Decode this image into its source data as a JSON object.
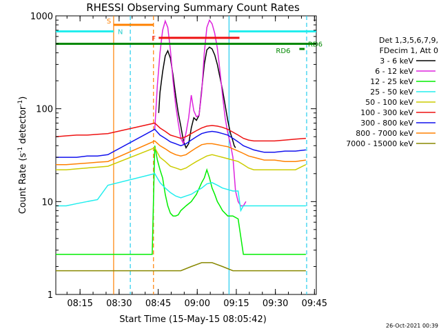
{
  "chart_data": {
    "type": "line",
    "title": "RHESSI Observing Summary Count Rates",
    "xlabel": "Start Time (15-May-15 08:05:42)",
    "ylabel_main": "Count Rate (s",
    "ylabel_sup1": "-1",
    "ylabel_mid": " detector",
    "ylabel_sup2": "-1",
    "ylabel_end": ")",
    "y_scale": "log",
    "ylim": [
      1,
      1000
    ],
    "xlim": [
      "08:05:42",
      "09:45:42"
    ],
    "x_ticks": [
      "08:15",
      "08:30",
      "08:45",
      "09:00",
      "09:15",
      "09:30",
      "09:45"
    ],
    "y_ticks": [
      "1",
      "10",
      "100",
      "1000"
    ],
    "grid": false,
    "legend_placement": "right",
    "legend_header": [
      "Det 1,3,5,6,7,9,",
      "FDecim 1, Att 0"
    ],
    "timestamp": "26-Oct-2021 00:39",
    "x_domain_min": [
      0,
      100
    ],
    "flag_labels": {
      "S": "S",
      "N": "N",
      "F": "F",
      "RD6": "RD6",
      "RD6_b": "RD6"
    },
    "vlines": [
      {
        "t": 22.2,
        "color": "#ff8000",
        "style": "solid"
      },
      {
        "t": 28.6,
        "color": "#22ccee",
        "style": "dashed"
      },
      {
        "t": 37.5,
        "color": "#ff8000",
        "style": "dashed"
      },
      {
        "t": 66.5,
        "color": "#22ccee",
        "style": "solid"
      },
      {
        "t": 96.3,
        "color": "#22ccee",
        "style": "dashed"
      }
    ],
    "flags": [
      {
        "name": "S",
        "t0": 22.2,
        "t1": 37.5,
        "y": 800,
        "color": "#ff8000"
      },
      {
        "name": "N",
        "t0": 0,
        "t1": 22.2,
        "y": 680,
        "color": "#22eeee"
      },
      {
        "name": "N2",
        "t0": 66.5,
        "t1": 100,
        "y": 680,
        "color": "#22eeee"
      },
      {
        "name": "F",
        "t0": 39.5,
        "t1": 70.5,
        "y": 580,
        "color": "#ee1111"
      },
      {
        "name": "RD6",
        "t0": 0,
        "t1": 100,
        "y": 500,
        "color": "#008800"
      },
      {
        "name": "RD6_b",
        "t0": 93.5,
        "t1": 95.5,
        "y": 440,
        "color": "#008800"
      }
    ],
    "series": [
      {
        "name": "3 - 6 keV",
        "color": "#000000",
        "x": [
          39.5,
          40,
          41,
          42,
          43,
          44,
          45,
          46,
          47,
          48,
          49,
          50,
          51,
          52,
          53,
          54,
          55,
          56,
          57,
          58,
          59,
          60,
          61,
          62,
          63,
          64,
          65,
          66,
          67,
          68,
          68.5,
          69
        ],
        "values": [
          90,
          150,
          250,
          370,
          420,
          350,
          230,
          140,
          90,
          65,
          45,
          38,
          42,
          62,
          80,
          75,
          85,
          160,
          300,
          430,
          460,
          440,
          380,
          300,
          220,
          160,
          110,
          75,
          55,
          45,
          40,
          38
        ]
      },
      {
        "name": "6 - 12 keV",
        "color": "#dd22dd",
        "x": [
          38,
          39,
          40,
          41,
          42,
          43,
          44,
          45,
          46,
          47,
          48,
          49,
          50,
          51,
          52,
          53,
          54,
          55,
          56,
          57,
          58,
          59,
          60,
          61,
          62,
          63,
          64,
          65,
          66,
          67,
          68,
          69,
          70,
          71,
          72,
          73
        ],
        "values": [
          60,
          180,
          400,
          700,
          880,
          750,
          430,
          200,
          110,
          70,
          48,
          42,
          55,
          80,
          140,
          95,
          82,
          85,
          150,
          400,
          750,
          900,
          820,
          650,
          450,
          260,
          140,
          80,
          55,
          42,
          30,
          13,
          10,
          9,
          9,
          10
        ]
      },
      {
        "name": "12 - 25 keV",
        "color": "#00ee00",
        "x": [
          0,
          5,
          10,
          15,
          20,
          22,
          26,
          30,
          34,
          37,
          38,
          39,
          40,
          41,
          42,
          43,
          44,
          45,
          46,
          47,
          48,
          50,
          52,
          54,
          56,
          57,
          58,
          59,
          60,
          61,
          62,
          63,
          64,
          66,
          68,
          70,
          72,
          74,
          76,
          78,
          80,
          84,
          88,
          92,
          96
        ],
        "values": [
          2.7,
          2.7,
          2.7,
          2.7,
          2.7,
          2.7,
          2.7,
          2.7,
          2.7,
          2.7,
          40,
          28,
          22,
          18,
          12,
          9,
          7.5,
          7,
          7,
          7.2,
          8,
          9,
          10,
          12,
          16,
          18,
          22,
          18,
          14,
          12,
          10,
          9,
          8,
          7,
          7,
          6.5,
          2.7,
          2.7,
          2.7,
          2.7,
          2.7,
          2.7,
          2.7,
          2.7,
          2.7
        ]
      },
      {
        "name": "25 - 50 keV",
        "color": "#22eeee",
        "x": [
          0,
          4,
          8,
          12,
          16,
          20,
          38,
          40,
          42,
          44,
          46,
          48,
          50,
          52,
          54,
          56,
          58,
          60,
          62,
          64,
          66,
          68,
          70,
          71,
          72,
          74,
          76,
          78,
          80,
          84,
          88,
          92,
          96
        ],
        "values": [
          9,
          9,
          9.5,
          10,
          10.5,
          15,
          20,
          16,
          14,
          12.5,
          11.5,
          11,
          11.5,
          12,
          13,
          14,
          15.5,
          16,
          15,
          14,
          13.5,
          13,
          13,
          8,
          9,
          9,
          9,
          9,
          9,
          9,
          9,
          9,
          9
        ]
      },
      {
        "name": "50 - 100 keV",
        "color": "#cccc00",
        "x": [
          0,
          4,
          8,
          12,
          16,
          20,
          38,
          40,
          42,
          44,
          46,
          48,
          50,
          52,
          54,
          56,
          58,
          60,
          62,
          64,
          66,
          68,
          70,
          72,
          74,
          76,
          78,
          80,
          84,
          88,
          92,
          96
        ],
        "values": [
          22,
          22,
          22.5,
          23,
          23.5,
          24,
          38,
          30,
          27,
          24,
          23,
          22,
          23,
          25,
          27,
          29,
          31,
          32,
          31,
          30,
          29,
          28,
          27,
          25,
          23,
          22,
          22,
          22,
          22,
          22,
          22,
          25
        ]
      },
      {
        "name": "100 - 300 keV",
        "color": "#ee1111",
        "x": [
          0,
          4,
          8,
          12,
          16,
          20,
          38,
          40,
          42,
          44,
          46,
          48,
          50,
          52,
          54,
          56,
          58,
          60,
          62,
          64,
          66,
          68,
          70,
          72,
          74,
          76,
          78,
          80,
          84,
          88,
          92,
          96
        ],
        "values": [
          50,
          51,
          52,
          52,
          53,
          54,
          70,
          62,
          57,
          52,
          50,
          48,
          50,
          54,
          58,
          62,
          65,
          66,
          65,
          63,
          60,
          56,
          52,
          48,
          46,
          45,
          45,
          45,
          45,
          46,
          47,
          48
        ]
      },
      {
        "name": "300 - 800 keV",
        "color": "#1111ee",
        "x": [
          0,
          4,
          8,
          12,
          16,
          20,
          38,
          40,
          42,
          44,
          46,
          48,
          50,
          52,
          54,
          56,
          58,
          60,
          62,
          64,
          66,
          68,
          70,
          72,
          74,
          76,
          78,
          80,
          84,
          88,
          92,
          96
        ],
        "values": [
          30,
          30,
          30,
          31,
          31,
          32,
          60,
          52,
          48,
          44,
          42,
          40,
          42,
          46,
          50,
          54,
          56,
          57,
          56,
          54,
          52,
          48,
          44,
          40,
          38,
          36,
          35,
          34,
          34,
          35,
          35,
          36
        ]
      },
      {
        "name": "800 - 7000 keV",
        "color": "#ff8000",
        "x": [
          0,
          4,
          8,
          12,
          16,
          20,
          38,
          40,
          42,
          44,
          46,
          48,
          50,
          52,
          54,
          56,
          58,
          60,
          62,
          64,
          66,
          68,
          70,
          72,
          74,
          76,
          78,
          80,
          84,
          88,
          92,
          96
        ],
        "values": [
          25,
          25,
          25.5,
          26,
          26.5,
          27,
          45,
          40,
          37,
          34,
          32,
          31,
          32,
          35,
          38,
          41,
          42,
          42,
          41,
          40,
          39,
          37,
          35,
          33,
          31,
          30,
          29,
          28,
          28,
          27,
          27,
          28
        ]
      },
      {
        "name": "7000 - 15000 keV",
        "color": "#888800",
        "x": [
          0,
          5,
          10,
          15,
          20,
          22,
          26,
          30,
          34,
          37,
          40,
          44,
          48,
          52,
          56,
          60,
          64,
          68,
          72,
          76,
          80,
          84,
          88,
          92,
          96
        ],
        "values": [
          1.8,
          1.8,
          1.8,
          1.8,
          1.8,
          1.8,
          1.8,
          1.8,
          1.8,
          1.8,
          1.8,
          1.8,
          1.8,
          2.0,
          2.2,
          2.2,
          2.0,
          1.8,
          1.8,
          1.8,
          1.8,
          1.8,
          1.8,
          1.8,
          1.8
        ]
      }
    ]
  }
}
